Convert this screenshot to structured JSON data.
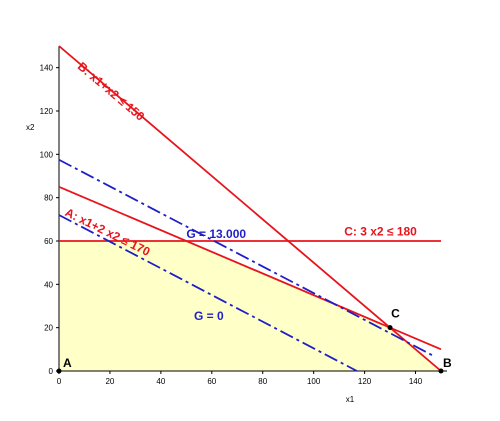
{
  "chart_data": {
    "type": "line",
    "xlabel": "x1",
    "ylabel": "x2",
    "xlim": [
      0,
      150
    ],
    "ylim": [
      0,
      150
    ],
    "xticks": [
      0,
      20,
      40,
      60,
      80,
      100,
      120,
      140
    ],
    "yticks": [
      0,
      20,
      40,
      60,
      80,
      100,
      120,
      140
    ],
    "colors": {
      "constraint": "#e8141c",
      "objective": "#1f1fc8",
      "feasible": "#ffffc8"
    },
    "feasible_region": [
      [
        0,
        0
      ],
      [
        0,
        60
      ],
      [
        50,
        60
      ],
      [
        130,
        20
      ],
      [
        150,
        0
      ]
    ],
    "series": [
      {
        "id": "A",
        "label": "A: x1+2 x2 ≤ 170",
        "color": "#e8141c",
        "style": "solid",
        "points": [
          [
            0,
            85
          ],
          [
            150,
            10
          ]
        ]
      },
      {
        "id": "B",
        "label": "B: x1+x2 ≤ 150",
        "color": "#e8141c",
        "style": "solid",
        "points": [
          [
            0,
            150
          ],
          [
            150,
            0
          ]
        ]
      },
      {
        "id": "C",
        "label": "C: 3 x2 ≤ 180",
        "color": "#e8141c",
        "style": "solid",
        "points": [
          [
            0,
            60
          ],
          [
            150,
            60
          ]
        ]
      },
      {
        "id": "G13000",
        "label": "G = 13.000",
        "color": "#1f1fc8",
        "style": "dashdot",
        "points": [
          [
            0,
            97.5
          ],
          [
            146.5,
            7.3
          ]
        ]
      },
      {
        "id": "G0",
        "label": "G = 0",
        "color": "#1f1fc8",
        "style": "dashdot",
        "points": [
          [
            0,
            72
          ],
          [
            117,
            0
          ]
        ]
      }
    ],
    "points": [
      {
        "label": "A",
        "x": 0,
        "y": 0
      },
      {
        "label": "B",
        "x": 150,
        "y": 0
      },
      {
        "label": "C",
        "x": 130,
        "y": 20
      }
    ]
  }
}
